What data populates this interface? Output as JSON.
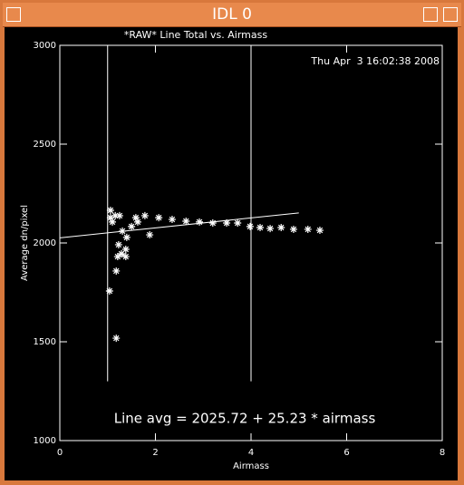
{
  "window": {
    "title": "IDL 0"
  },
  "chart_data": {
    "type": "scatter",
    "title": "*RAW* Line Total vs. Airmass",
    "timestamp": "Thu Apr  3 16:02:38 2008",
    "x_label": "Airmass",
    "y_label": "Average dn/pixel",
    "annotation": "Line avg = 2025.72 + 25.23 * airmass",
    "xlim": [
      0,
      8
    ],
    "xticks": [
      0,
      2,
      4,
      6,
      8
    ],
    "ylim": [
      1000,
      3000
    ],
    "yticks": [
      1000,
      1500,
      2000,
      2500,
      3000
    ],
    "color": "#ffffff",
    "x": [
      1.04,
      1.18,
      1.18,
      1.21,
      1.38,
      1.23,
      1.29,
      1.38,
      1.88,
      1.06,
      1.06,
      1.1,
      1.16,
      1.25,
      1.31,
      1.4,
      1.5,
      1.63,
      1.59,
      1.78,
      2.07,
      2.35,
      2.64,
      2.92,
      3.2,
      3.49,
      3.72,
      3.98,
      4.19,
      4.4,
      4.63,
      4.89,
      5.19,
      5.44
    ],
    "values": [
      1757,
      1518,
      1858,
      1931,
      1931,
      1991,
      1945,
      1968,
      2041,
      2165,
      2128,
      2106,
      2138,
      2138,
      2060,
      2028,
      2083,
      2106,
      2128,
      2138,
      2128,
      2119,
      2110,
      2106,
      2101,
      2101,
      2101,
      2083,
      2078,
      2073,
      2078,
      2069,
      2069,
      2064
    ],
    "fit": {
      "x": [
        0,
        5
      ],
      "values": [
        2025.72,
        2151.87
      ]
    },
    "reference_lines": {
      "x": [
        1,
        4
      ],
      "ymin": 1300
    }
  }
}
